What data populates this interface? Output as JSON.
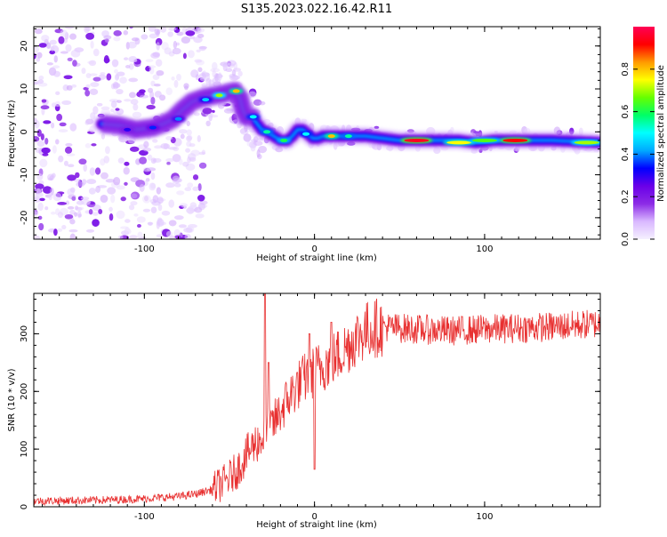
{
  "figure": {
    "title": "S135.2023.022.16.42.R11"
  },
  "chart_data": [
    {
      "type": "heatmap",
      "xlabel": "Height of straight line (km)",
      "ylabel": "Frequency (Hz)",
      "xlim": [
        -165,
        168
      ],
      "ylim": [
        -25,
        24.5
      ],
      "xticks": [
        -100,
        0,
        100
      ],
      "yticks": [
        -20,
        -10,
        0,
        10,
        20
      ],
      "colorbar": {
        "label": "Normalized spectral amplitude",
        "ticks": [
          0.0,
          0.2,
          0.4,
          0.6,
          0.8
        ],
        "range": [
          0,
          1
        ],
        "colormap": [
          "#f5f0ff",
          "#d9b8ff",
          "#8c2be6",
          "#6a00e8",
          "#0000ff",
          "#00aaff",
          "#00ffff",
          "#00ff66",
          "#66ff00",
          "#ffff00",
          "#ff9900",
          "#ff0000",
          "#ff0055"
        ]
      },
      "ridge": {
        "x": [
          -165,
          -150,
          -130,
          -115,
          -105,
          -95,
          -88,
          -83,
          -78,
          -72,
          -65,
          -58,
          -52,
          -47,
          -44,
          -42,
          -40,
          -37,
          -34,
          -31,
          -28,
          -24,
          -20,
          -16,
          -13,
          -10,
          -7,
          -4,
          -1,
          2,
          5,
          10,
          20,
          30,
          50,
          70,
          85,
          95,
          105,
          120,
          140,
          168
        ],
        "y": [
          1.5,
          1.5,
          2,
          1.5,
          0.5,
          1,
          2,
          3,
          5,
          7,
          8,
          8.5,
          9,
          9.5,
          8,
          5,
          3.5,
          3.5,
          2,
          0.5,
          0,
          -1,
          -2,
          -2,
          -1,
          0.5,
          0.5,
          -0.5,
          -1.5,
          -1.5,
          -1,
          -1,
          -1,
          -1,
          -2,
          -2,
          -2,
          -2.5,
          -2,
          -2,
          -2,
          -2.5
        ]
      },
      "hotspots": [
        {
          "x": 60,
          "y": -2,
          "value": 0.95
        },
        {
          "x": 118,
          "y": -2,
          "value": 0.92
        },
        {
          "x": 85,
          "y": -2.5,
          "value": 0.75
        },
        {
          "x": 160,
          "y": -2.5,
          "value": 0.7
        },
        {
          "x": 10,
          "y": -1,
          "value": 0.8
        },
        {
          "x": 20,
          "y": -1,
          "value": 0.55
        },
        {
          "x": 100,
          "y": -2,
          "value": 0.65
        },
        {
          "x": -46,
          "y": 9.5,
          "value": 0.8
        },
        {
          "x": -56,
          "y": 8.5,
          "value": 0.7
        },
        {
          "x": -64,
          "y": 7.5,
          "value": 0.45
        },
        {
          "x": -28,
          "y": 0,
          "value": 0.55
        },
        {
          "x": -18,
          "y": -2,
          "value": 0.6
        },
        {
          "x": -36,
          "y": 3.5,
          "value": 0.5
        },
        {
          "x": -5,
          "y": -0.5,
          "value": 0.5
        },
        {
          "x": -80,
          "y": 3,
          "value": 0.4
        },
        {
          "x": -95,
          "y": 1,
          "value": 0.35
        },
        {
          "x": -110,
          "y": 0.5,
          "value": 0.3
        }
      ]
    },
    {
      "type": "line",
      "xlabel": "Height of straight line (km)",
      "ylabel": "SNR (10 * v/v)",
      "xlim": [
        -165,
        168
      ],
      "ylim": [
        0,
        370
      ],
      "xticks": [
        -100,
        0,
        100
      ],
      "yticks": [
        0,
        100,
        200,
        300
      ],
      "color": "#e83030",
      "series": [
        {
          "trend": {
            "x": [
              -165,
              -140,
              -120,
              -100,
              -80,
              -70,
              -60,
              -52,
              -45,
              -40,
              -35,
              -30,
              -25,
              -20,
              -15,
              -10,
              -5,
              0,
              5,
              10,
              15,
              20,
              25,
              30,
              35,
              40,
              50,
              60,
              80,
              100,
              120,
              140,
              168
            ],
            "y": [
              10,
              11,
              12,
              14,
              18,
              22,
              30,
              45,
              65,
              90,
              110,
              120,
              140,
              165,
              190,
              210,
              225,
              235,
              245,
              255,
              265,
              280,
              295,
              305,
              310,
              312,
              310,
              308,
              305,
              308,
              310,
              312,
              318
            ]
          },
          "spikes": [
            {
              "x": -29,
              "y": 370
            },
            {
              "x": -27,
              "y": 250
            },
            {
              "x": 0,
              "y": 65
            },
            {
              "x": -3,
              "y": 300
            },
            {
              "x": 10,
              "y": 320
            }
          ]
        }
      ]
    }
  ]
}
